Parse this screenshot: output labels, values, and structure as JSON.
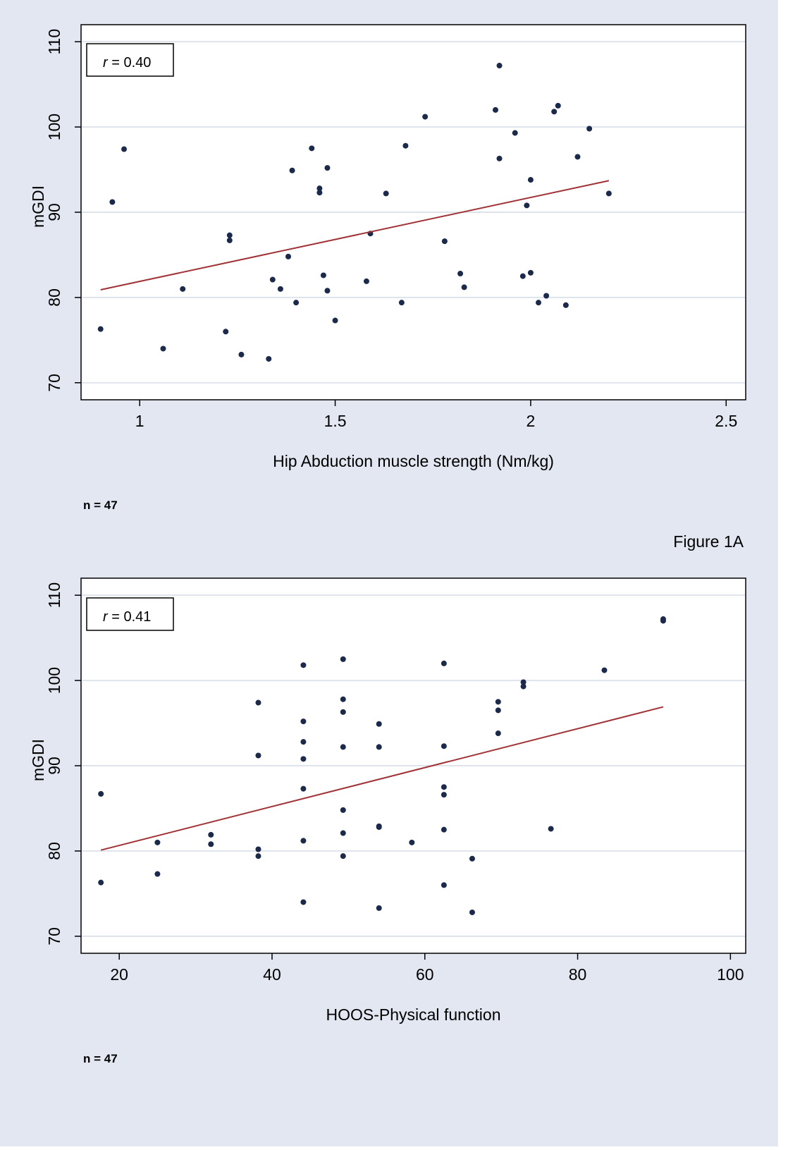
{
  "colors": {
    "background": "#e2e7f1",
    "plot_background": "#ffffff",
    "marker": "#1b2a4a",
    "fit_line": "#a03236",
    "grid": "#dfe4ec"
  },
  "figure_label": "Figure 1A",
  "chart_data": [
    {
      "type": "scatter",
      "title": "",
      "xlabel": "Hip Abduction muscle strength (Nm/kg)",
      "ylabel": "mGDI",
      "xlim": [
        0.85,
        2.55
      ],
      "ylim": [
        68,
        112
      ],
      "xticks": [
        1,
        1.5,
        2,
        2.5
      ],
      "xtick_labels": [
        "1",
        "1.5",
        "2",
        "2.5"
      ],
      "yticks": [
        70,
        80,
        90,
        100,
        110
      ],
      "ytick_labels": [
        "70",
        "80",
        "90",
        "100",
        "110"
      ],
      "grid": true,
      "r_label": "r",
      "r_value": "= 0.40",
      "note": "n = 47",
      "points": [
        [
          0.9,
          76.3
        ],
        [
          0.93,
          91.2
        ],
        [
          0.96,
          97.4
        ],
        [
          1.06,
          74.0
        ],
        [
          1.11,
          81.0
        ],
        [
          1.22,
          76.0
        ],
        [
          1.23,
          87.3
        ],
        [
          1.23,
          86.7
        ],
        [
          1.26,
          73.3
        ],
        [
          1.33,
          72.8
        ],
        [
          1.34,
          82.1
        ],
        [
          1.36,
          81.0
        ],
        [
          1.38,
          84.8
        ],
        [
          1.39,
          94.9
        ],
        [
          1.4,
          79.4
        ],
        [
          1.44,
          97.5
        ],
        [
          1.46,
          92.8
        ],
        [
          1.46,
          92.3
        ],
        [
          1.47,
          82.6
        ],
        [
          1.48,
          80.8
        ],
        [
          1.48,
          95.2
        ],
        [
          1.5,
          77.3
        ],
        [
          1.58,
          81.9
        ],
        [
          1.59,
          87.5
        ],
        [
          1.63,
          92.2
        ],
        [
          1.67,
          79.4
        ],
        [
          1.68,
          97.8
        ],
        [
          1.73,
          101.2
        ],
        [
          1.78,
          86.6
        ],
        [
          1.82,
          82.8
        ],
        [
          1.83,
          81.2
        ],
        [
          1.91,
          102.0
        ],
        [
          1.92,
          107.2
        ],
        [
          1.92,
          96.3
        ],
        [
          1.96,
          99.3
        ],
        [
          1.98,
          82.5
        ],
        [
          1.99,
          90.8
        ],
        [
          2.0,
          93.8
        ],
        [
          2.0,
          82.9
        ],
        [
          2.02,
          79.4
        ],
        [
          2.04,
          80.2
        ],
        [
          2.06,
          101.8
        ],
        [
          2.07,
          102.5
        ],
        [
          2.09,
          79.1
        ],
        [
          2.12,
          96.5
        ],
        [
          2.15,
          99.8
        ],
        [
          2.2,
          92.2
        ]
      ],
      "fit_line": [
        [
          0.9,
          80.9
        ],
        [
          2.2,
          93.7
        ]
      ]
    },
    {
      "type": "scatter",
      "title": "",
      "xlabel": "HOOS-Physical function",
      "ylabel": "mGDI",
      "xlim": [
        15,
        102
      ],
      "ylim": [
        68,
        112
      ],
      "xticks": [
        20,
        40,
        60,
        80,
        100
      ],
      "xtick_labels": [
        "20",
        "40",
        "60",
        "80",
        "100"
      ],
      "yticks": [
        70,
        80,
        90,
        100,
        110
      ],
      "ytick_labels": [
        "70",
        "80",
        "90",
        "100",
        "110"
      ],
      "grid": true,
      "r_label": "r",
      "r_value": "= 0.41",
      "note": "n = 47",
      "points": [
        [
          17.6,
          86.7
        ],
        [
          17.6,
          76.3
        ],
        [
          25.0,
          81.0
        ],
        [
          25.0,
          77.3
        ],
        [
          32.0,
          81.9
        ],
        [
          32.0,
          80.8
        ],
        [
          38.2,
          97.4
        ],
        [
          38.2,
          91.2
        ],
        [
          38.2,
          80.2
        ],
        [
          38.2,
          79.4
        ],
        [
          44.1,
          101.8
        ],
        [
          44.1,
          95.2
        ],
        [
          44.1,
          92.8
        ],
        [
          44.1,
          90.8
        ],
        [
          44.1,
          87.3
        ],
        [
          44.1,
          81.2
        ],
        [
          44.1,
          74.0
        ],
        [
          49.3,
          102.5
        ],
        [
          49.3,
          97.8
        ],
        [
          49.3,
          96.3
        ],
        [
          49.3,
          92.2
        ],
        [
          49.3,
          84.8
        ],
        [
          49.3,
          82.1
        ],
        [
          49.3,
          79.4
        ],
        [
          54.0,
          94.9
        ],
        [
          54.0,
          92.2
        ],
        [
          54.0,
          82.9
        ],
        [
          54.0,
          82.8
        ],
        [
          54.0,
          73.3
        ],
        [
          58.3,
          81.0
        ],
        [
          62.5,
          102.0
        ],
        [
          62.5,
          92.3
        ],
        [
          62.5,
          87.5
        ],
        [
          62.5,
          86.6
        ],
        [
          62.5,
          82.5
        ],
        [
          62.5,
          76.0
        ],
        [
          66.2,
          79.1
        ],
        [
          66.2,
          72.8
        ],
        [
          69.6,
          97.5
        ],
        [
          69.6,
          96.5
        ],
        [
          69.6,
          93.8
        ],
        [
          72.9,
          99.8
        ],
        [
          72.9,
          99.3
        ],
        [
          76.5,
          82.6
        ],
        [
          83.5,
          101.2
        ],
        [
          91.2,
          107.2
        ],
        [
          91.2,
          107.0
        ]
      ],
      "fit_line": [
        [
          17.6,
          80.1
        ],
        [
          91.2,
          96.9
        ]
      ]
    }
  ]
}
